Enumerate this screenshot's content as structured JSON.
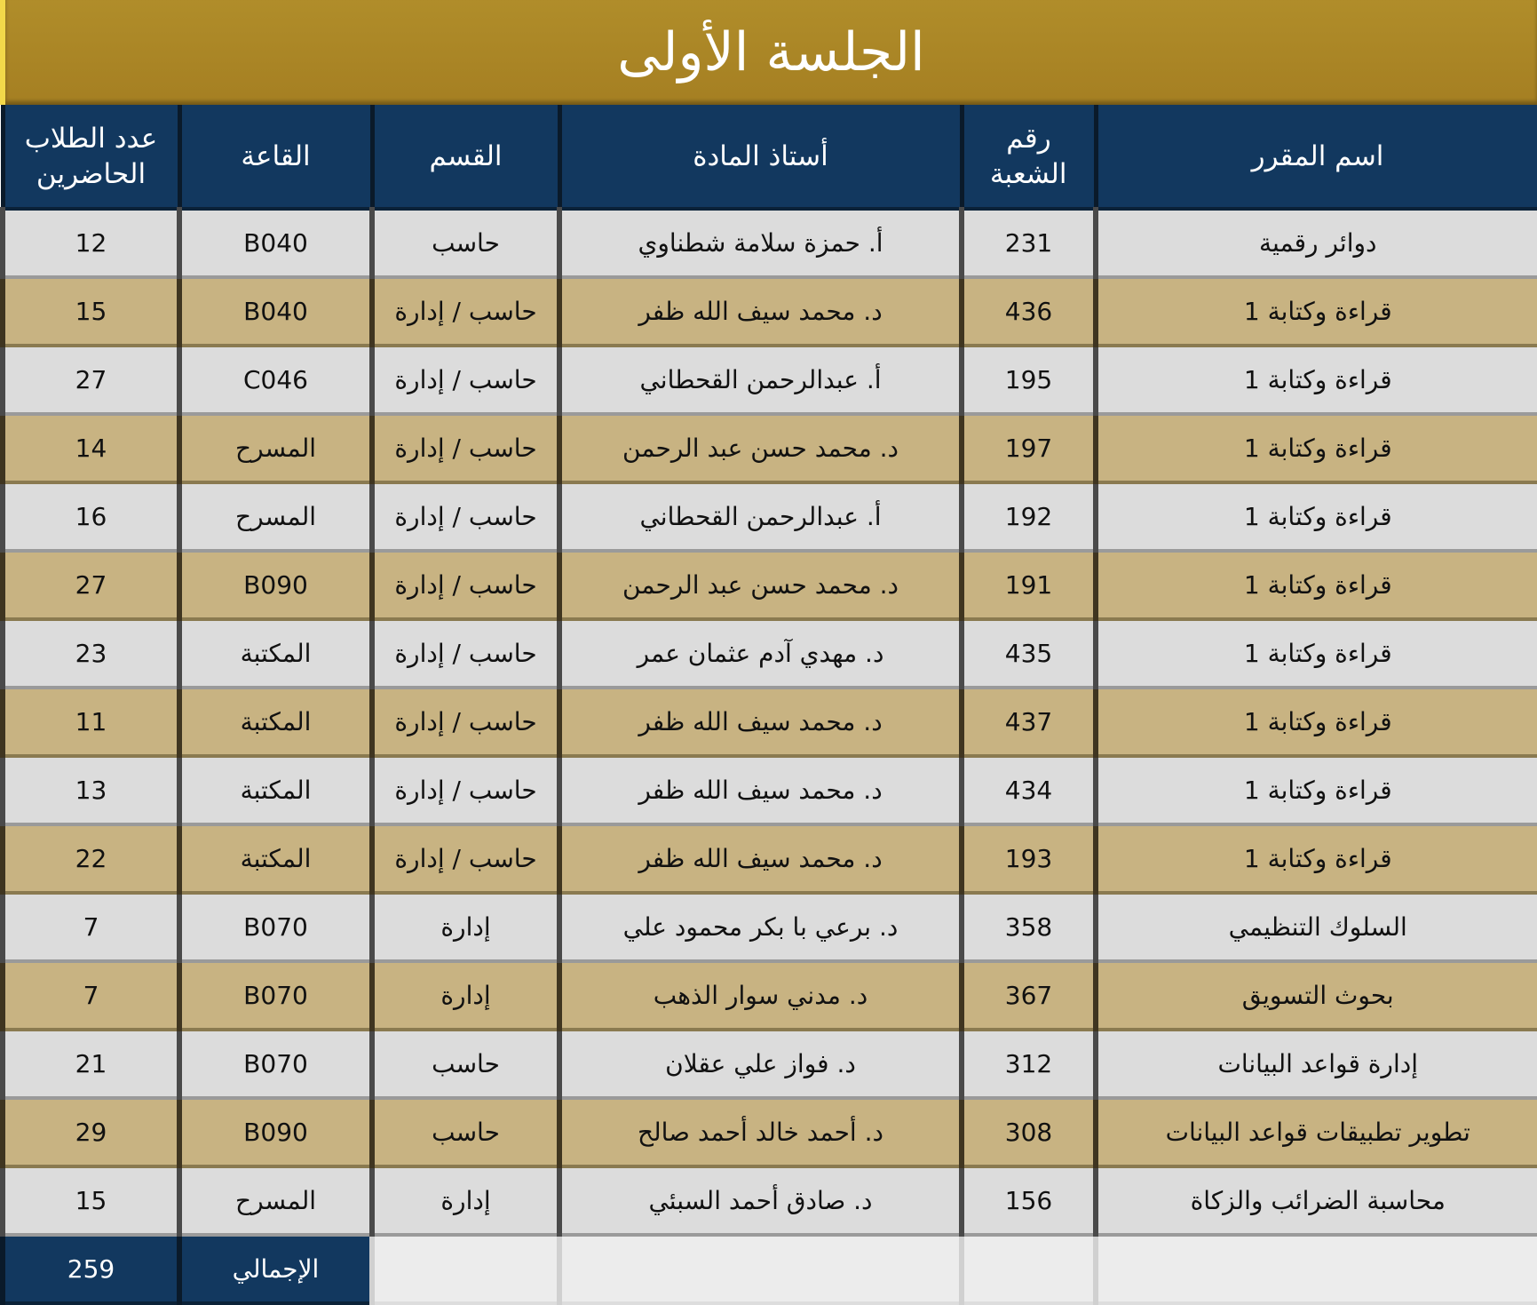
{
  "title": "الجلسة الأولى",
  "headers": [
    "اسم المقرر",
    "رقم الشعبة",
    "أستاذ المادة",
    "القسم",
    "القاعة",
    "عدد الطلاب الحاضرين"
  ],
  "rows": [
    [
      "دوائر رقمية",
      "231",
      "أ. حمزة سلامة شطناوي",
      "حاسب",
      "B040",
      "12"
    ],
    [
      "قراءة وكتابة 1",
      "436",
      "د. محمد سيف الله ظفر",
      "حاسب / إدارة",
      "B040",
      "15"
    ],
    [
      "قراءة وكتابة 1",
      "195",
      "أ. عبدالرحمن القحطاني",
      "حاسب / إدارة",
      "C046",
      "27"
    ],
    [
      "قراءة وكتابة 1",
      "197",
      "د. محمد حسن عبد الرحمن",
      "حاسب / إدارة",
      "المسرح",
      "14"
    ],
    [
      "قراءة وكتابة 1",
      "192",
      "أ. عبدالرحمن القحطاني",
      "حاسب / إدارة",
      "المسرح",
      "16"
    ],
    [
      "قراءة وكتابة 1",
      "191",
      "د. محمد حسن عبد الرحمن",
      "حاسب / إدارة",
      "B090",
      "27"
    ],
    [
      "قراءة وكتابة 1",
      "435",
      "د. مهدي آدم عثمان عمر",
      "حاسب / إدارة",
      "المكتبة",
      "23"
    ],
    [
      "قراءة وكتابة 1",
      "437",
      "د. محمد سيف الله ظفر",
      "حاسب / إدارة",
      "المكتبة",
      "11"
    ],
    [
      "قراءة وكتابة 1",
      "434",
      "د. محمد سيف الله ظفر",
      "حاسب / إدارة",
      "المكتبة",
      "13"
    ],
    [
      "قراءة وكتابة 1",
      "193",
      "د. محمد سيف الله ظفر",
      "حاسب / إدارة",
      "المكتبة",
      "22"
    ],
    [
      "السلوك التنظيمي",
      "358",
      "د. برعي با بكر محمود علي",
      "إدارة",
      "B070",
      "7"
    ],
    [
      "بحوث التسويق",
      "367",
      "د. مدني سوار الذهب",
      "إدارة",
      "B070",
      "7"
    ],
    [
      "إدارة قواعد البيانات",
      "312",
      "د. فواز علي عقلان",
      "حاسب",
      "B070",
      "21"
    ],
    [
      "تطوير تطبيقات قواعد البيانات",
      "308",
      "د. أحمد خالد أحمد صالح",
      "حاسب",
      "B090",
      "29"
    ],
    [
      "محاسبة الضرائب والزكاة",
      "156",
      "د. صادق أحمد السبئي",
      "إدارة",
      "المسرح",
      "15"
    ]
  ],
  "total": {
    "label": "الإجمالي",
    "value": "259"
  },
  "colors": {
    "header": "#12385f",
    "title": "#a8842a",
    "row_light": "#dcdcdc",
    "row_gold": "#c8b382"
  }
}
